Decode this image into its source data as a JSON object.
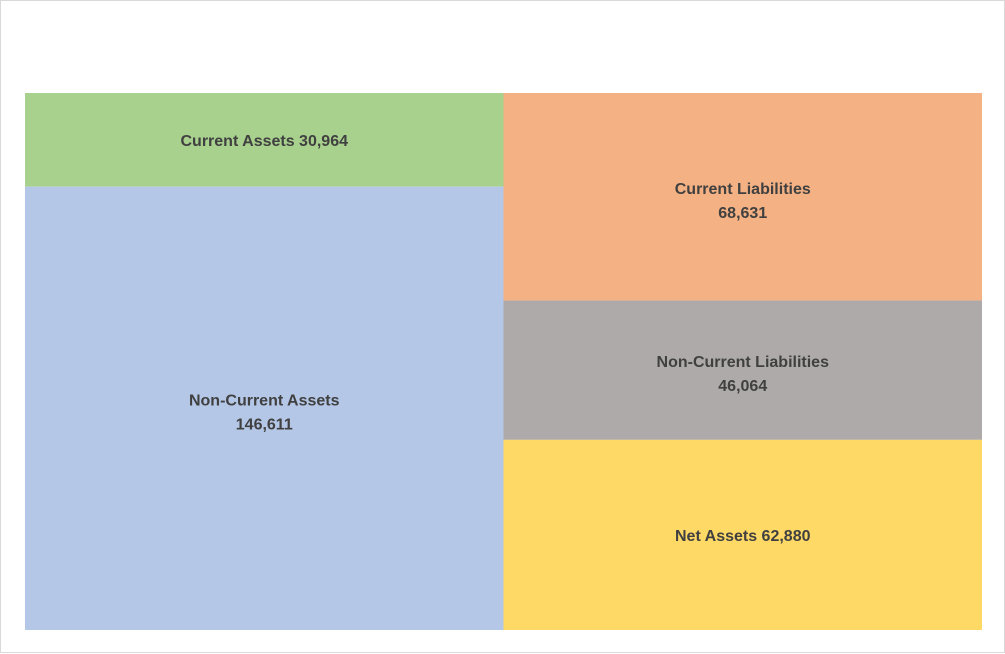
{
  "chart_data": {
    "type": "treemap",
    "title": "",
    "groups": [
      {
        "items": [
          {
            "label": "Current Assets",
            "value": 30964,
            "value_text": "30,964",
            "color": "#a9d18e"
          },
          {
            "label": "Non-Current Assets",
            "value": 146611,
            "value_text": "146,611",
            "color": "#b4c7e7"
          }
        ]
      },
      {
        "items": [
          {
            "label": "Current Liabilities",
            "value": 68631,
            "value_text": "68,631",
            "color": "#f4b183"
          },
          {
            "label": "Non-Current Liabilities",
            "value": 46064,
            "value_text": "46,064",
            "color": "#aeaaaa"
          },
          {
            "label": "Net Assets",
            "value": 62880,
            "value_text": "62,880",
            "color": "#ffd966"
          }
        ]
      }
    ]
  }
}
